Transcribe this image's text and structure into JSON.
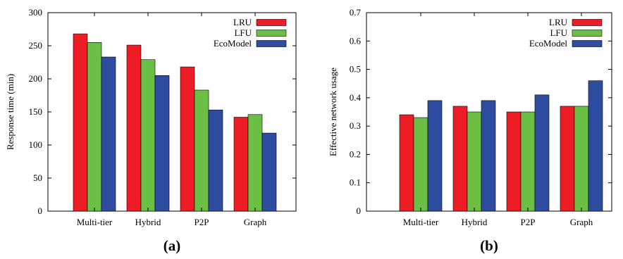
{
  "chart_data": [
    {
      "type": "bar",
      "panel_label": "(a)",
      "categories": [
        "Multi-tier",
        "Hybrid",
        "P2P",
        "Graph"
      ],
      "series": [
        {
          "name": "LRU",
          "color": "#ee1c24",
          "values": [
            268,
            251,
            218,
            142
          ]
        },
        {
          "name": "LFU",
          "color": "#6cbf45",
          "values": [
            255,
            229,
            183,
            146
          ]
        },
        {
          "name": "EcoModel",
          "color": "#2e4da1",
          "values": [
            233,
            205,
            153,
            118
          ]
        }
      ],
      "ylabel": "Response time (min)",
      "xlabel": "",
      "ylim": [
        0,
        300
      ],
      "yticks": [
        "0",
        "50",
        "100",
        "150",
        "200",
        "250",
        "300"
      ],
      "legend_position": "top-right",
      "grid": false
    },
    {
      "type": "bar",
      "panel_label": "(b)",
      "categories": [
        "Multi-tier",
        "Hybrid",
        "P2P",
        "Graph"
      ],
      "series": [
        {
          "name": "LRU",
          "color": "#ee1c24",
          "values": [
            0.34,
            0.37,
            0.35,
            0.37
          ]
        },
        {
          "name": "LFU",
          "color": "#6cbf45",
          "values": [
            0.33,
            0.35,
            0.35,
            0.37
          ]
        },
        {
          "name": "EcoModel",
          "color": "#2e4da1",
          "values": [
            0.39,
            0.39,
            0.41,
            0.46
          ]
        }
      ],
      "ylabel": "Effective network usage",
      "xlabel": "",
      "ylim": [
        0,
        0.7
      ],
      "yticks": [
        "0",
        "0.1",
        "0.2",
        "0.3",
        "0.4",
        "0.5",
        "0.6",
        "0.7"
      ],
      "legend_position": "top-right",
      "grid": false
    }
  ]
}
